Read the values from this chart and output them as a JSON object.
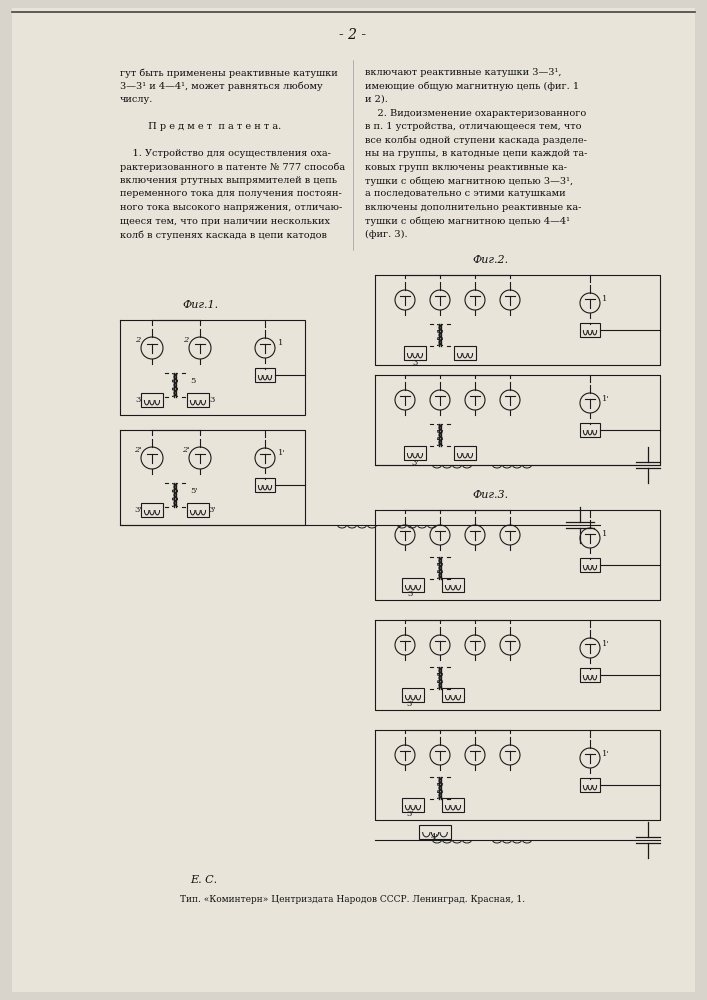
{
  "bg": "#d8d4cc",
  "page_bg": "#e8e4da",
  "text_color": "#111111",
  "dc": "#1a1a1a",
  "page_number": "- 2 -",
  "left_col": [
    "гут быть применены реактивные катушки",
    "3—3¹ и 4—4¹, может равняться любому",
    "числу.",
    "",
    "         П р е д м е т  п а т е н т а.",
    "",
    "    1. Устройство для осуществления оха-",
    "рактеризованного в патенте № 777 способа",
    "включения ртутных выпрямителей в цепь",
    "переменного тока для получения постоян-",
    "ного тока высокого напряжения, отличаю-",
    "щееся тем, что при наличии нескольких",
    "колб в ступенях каскада в цепи катодов"
  ],
  "right_col": [
    "включают реактивные катушки 3—3¹,",
    "имеющие общую магнитную цепь (фиг. 1",
    "и 2).",
    "    2. Видоизменение охарактеризованного",
    "в п. 1 устройства, отличающееся тем, что",
    "все колбы одной ступени каскада разделе-",
    "ны на группы, в катодные цепи каждой та-",
    "ковых групп включены реактивные ка-",
    "тушки с общею магнитною цепью 3—3¹,",
    "а последовательно с этими катушками",
    "включены дополнительно реактивные ка-",
    "тушки с общею магнитною цепью 4—4¹",
    "(фиг. 3)."
  ],
  "footer1": "Е. С.",
  "footer2": "Тип. «Коминтерн» Центриздата Народов СССР. Ленинград. Красная, 1.",
  "fig1_label": "Фиг.1.",
  "fig2_label": "Фиг.2.",
  "fig3_label": "Фиг.3."
}
